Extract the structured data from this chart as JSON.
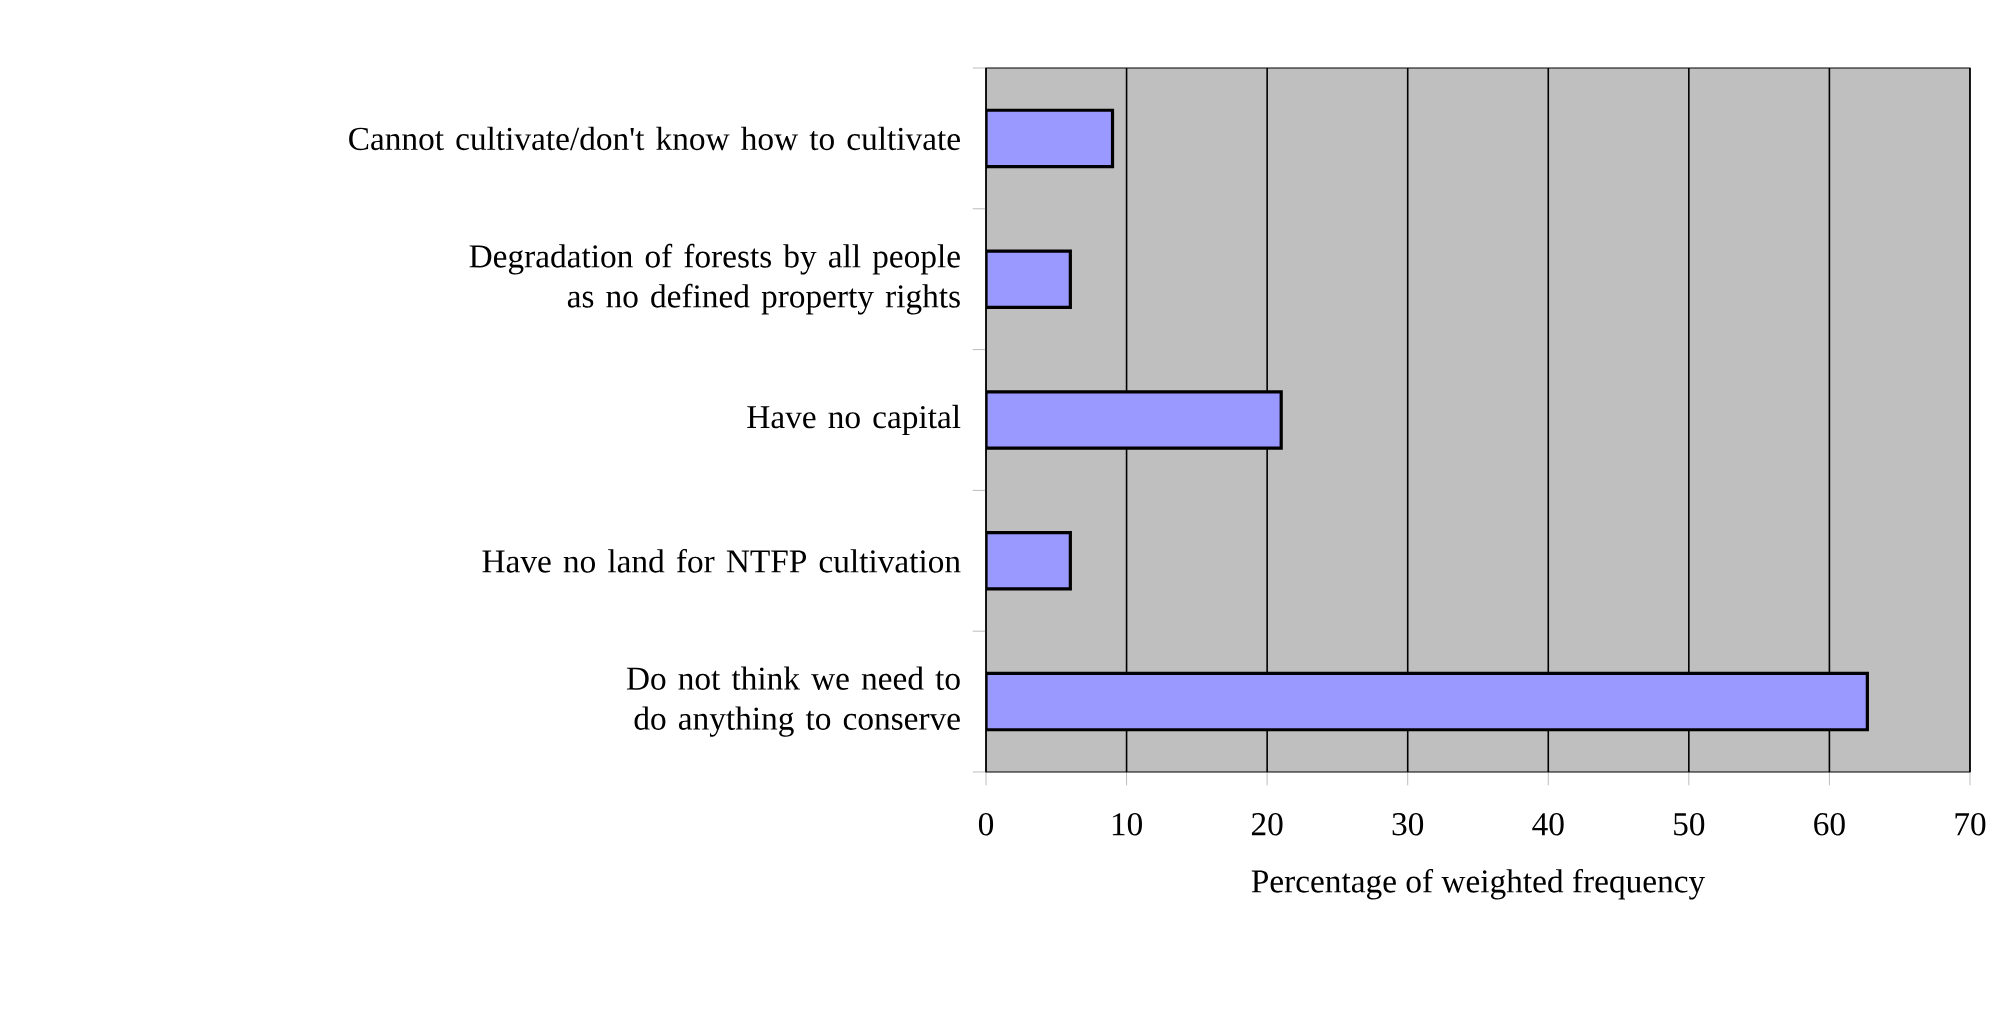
{
  "chart_data": {
    "type": "bar",
    "orientation": "horizontal",
    "categories": [
      "Cannot cultivate/don't know how to cultivate",
      "Degradation of forests by all people as no defined property rights",
      "Have no capital",
      "Have no land for NTFP cultivation",
      "Do not think we need to do anything to conserve"
    ],
    "values": [
      9,
      6,
      21,
      6,
      62.7
    ],
    "color": "#9999ff",
    "xlabel": "Percentage of weighted frequency",
    "xlim": [
      0,
      70
    ],
    "xticks": [
      0,
      10,
      20,
      30,
      40,
      50,
      60,
      70
    ],
    "grid": "x"
  }
}
